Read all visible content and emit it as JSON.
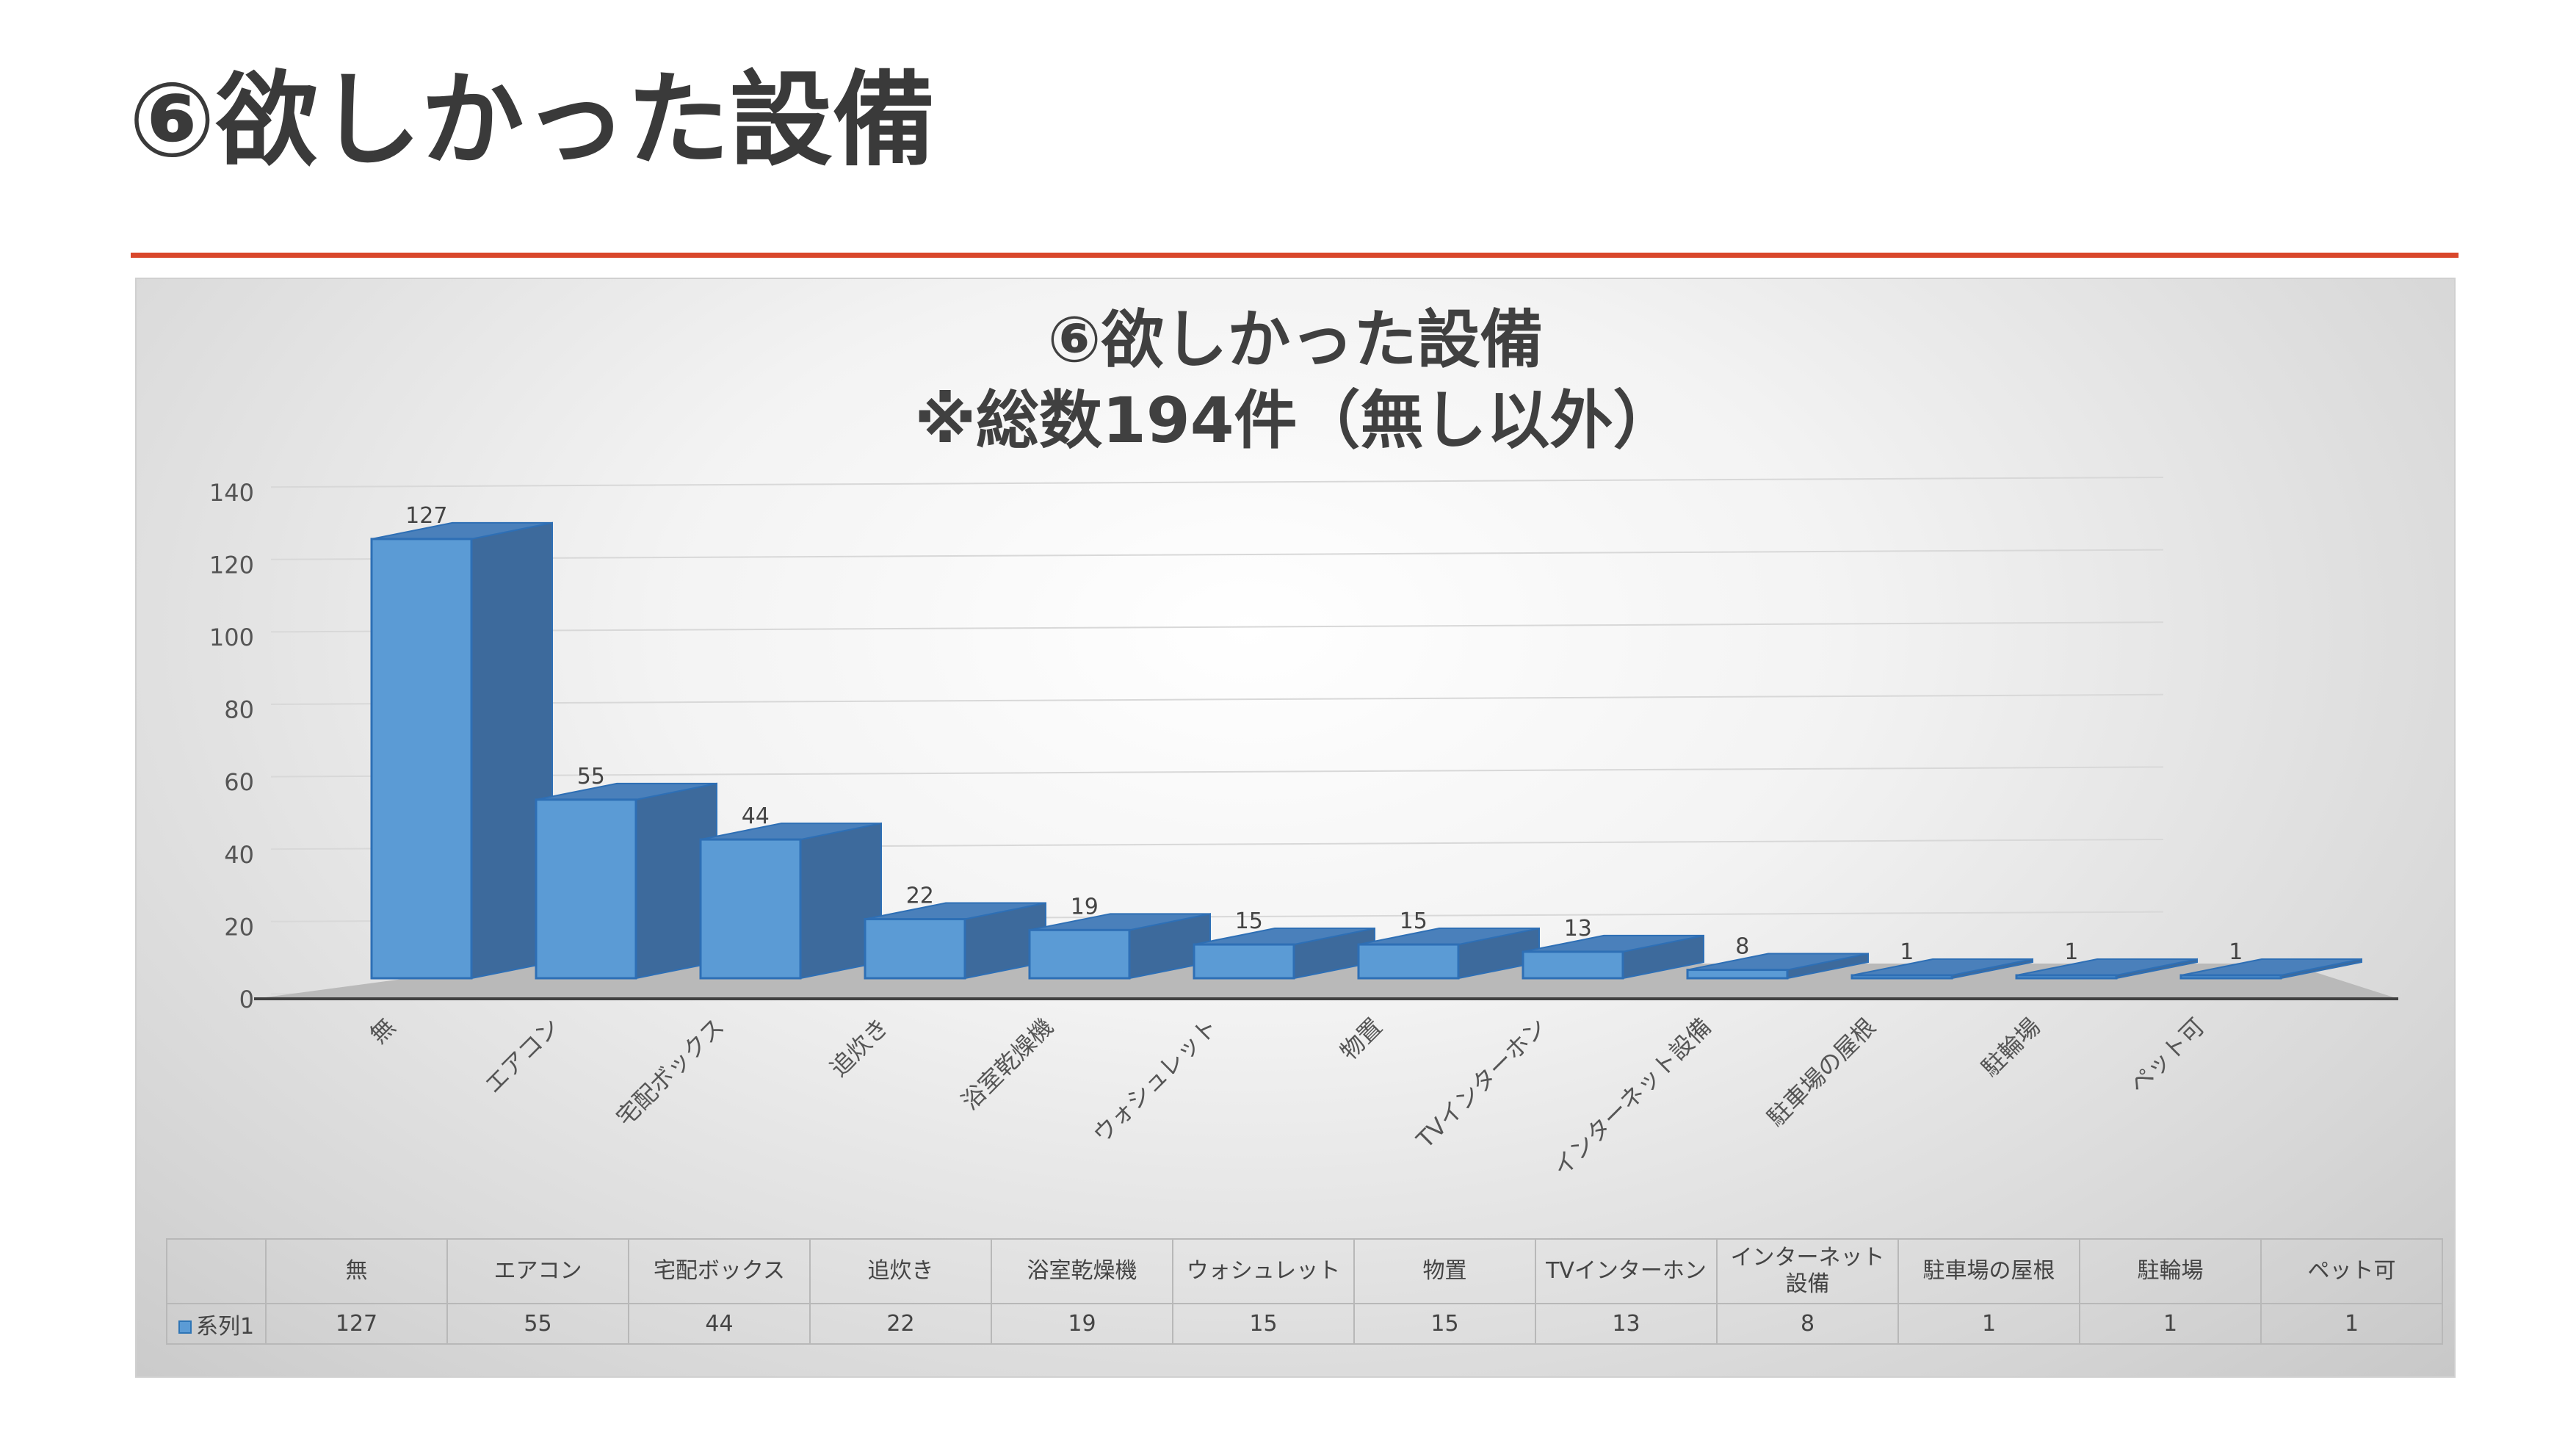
{
  "slide": {
    "title": "⑥欲しかった設備"
  },
  "chart_data": {
    "type": "bar",
    "title_line1": "⑥欲しかった設備",
    "title_line2": "※総数194件（無し以外）",
    "categories": [
      "無",
      "エアコン",
      "宅配ボックス",
      "追炊き",
      "浴室乾燥機",
      "ウォシュレット",
      "物置",
      "TVインターホン",
      "インターネット設備",
      "駐車場の屋根",
      "駐輪場",
      "ペット可"
    ],
    "table_categories": [
      "無",
      "エアコン",
      "宅配ボックス",
      "追炊き",
      "浴室乾燥機",
      "ウォシュレット",
      "物置",
      "TVインターホン",
      "インターネット\n設備",
      "駐車場の屋根",
      "駐輪場",
      "ペット可"
    ],
    "series": [
      {
        "name": "系列1",
        "values": [
          127,
          55,
          44,
          22,
          19,
          15,
          15,
          13,
          8,
          1,
          1,
          1
        ]
      }
    ],
    "ylim": [
      0,
      140
    ],
    "yticks": [
      0,
      20,
      40,
      60,
      80,
      100,
      120,
      140
    ],
    "grid": true,
    "data_table": true,
    "colors": {
      "bar_front": "#5b9bd5",
      "bar_side": "#3d6a9c",
      "bar_top": "#4a80bb",
      "bar_edge": "#2e6fb5"
    }
  }
}
